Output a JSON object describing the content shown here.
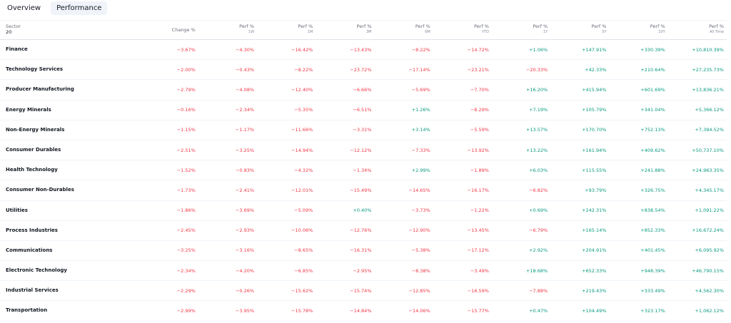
{
  "tabs": [
    {
      "label": "Overview",
      "active": false
    },
    {
      "label": "Performance",
      "active": true
    }
  ],
  "table": {
    "sector_header": "Sector",
    "sector_count": "20",
    "columns": [
      {
        "label": "Change %",
        "sub": ""
      },
      {
        "label": "Perf %",
        "sub": "1W"
      },
      {
        "label": "Perf %",
        "sub": "1M"
      },
      {
        "label": "Perf %",
        "sub": "3M"
      },
      {
        "label": "Perf %",
        "sub": "6M"
      },
      {
        "label": "Perf %",
        "sub": "YTD"
      },
      {
        "label": "Perf %",
        "sub": "1Y"
      },
      {
        "label": "Perf %",
        "sub": "5Y"
      },
      {
        "label": "Perf %",
        "sub": "10Y"
      },
      {
        "label": "Perf %",
        "sub": "All Time"
      }
    ],
    "rows": [
      {
        "name": "Finance",
        "values": [
          "−3.67%",
          "−4.30%",
          "−16.42%",
          "−13.43%",
          "−8.22%",
          "−14.72%",
          "+1.06%",
          "+147.91%",
          "+330.39%",
          "+10,810.39%"
        ]
      },
      {
        "name": "Technology Services",
        "values": [
          "−2.00%",
          "−0.43%",
          "−8.22%",
          "−23.72%",
          "−17.14%",
          "−23.21%",
          "−20.33%",
          "+42.33%",
          "+210.64%",
          "+27,235.73%"
        ]
      },
      {
        "name": "Producer Manufacturing",
        "values": [
          "−2.79%",
          "−4.08%",
          "−12.40%",
          "−6.66%",
          "−5.69%",
          "−7.70%",
          "+16.20%",
          "+415.94%",
          "+601.69%",
          "+13,836.21%"
        ]
      },
      {
        "name": "Energy Minerals",
        "values": [
          "−0.16%",
          "−2.34%",
          "−5.35%",
          "−6.51%",
          "+1.26%",
          "−8.29%",
          "+7.19%",
          "+105.79%",
          "+341.04%",
          "+5,366.12%"
        ]
      },
      {
        "name": "Non-Energy Minerals",
        "values": [
          "−1.15%",
          "−1.17%",
          "−11.66%",
          "−3.31%",
          "+3.14%",
          "−5.59%",
          "+13.57%",
          "+170.70%",
          "+752.13%",
          "+7,394.52%"
        ]
      },
      {
        "name": "Consumer Durables",
        "values": [
          "−2.51%",
          "−3.25%",
          "−14.94%",
          "−12.12%",
          "−7.33%",
          "−13.92%",
          "+13.22%",
          "+161.94%",
          "+409.62%",
          "+50,737.10%"
        ]
      },
      {
        "name": "Health Technology",
        "values": [
          "−1.52%",
          "−0.83%",
          "−4.32%",
          "−1.34%",
          "+2.99%",
          "−1.89%",
          "+6.03%",
          "+115.55%",
          "+241.88%",
          "+24,963.35%"
        ]
      },
      {
        "name": "Consumer Non-Durables",
        "values": [
          "−1.73%",
          "−2.41%",
          "−12.01%",
          "−15.49%",
          "−14.65%",
          "−16.17%",
          "−6.82%",
          "+93.79%",
          "+326.75%",
          "+4,345.17%"
        ]
      },
      {
        "name": "Utilities",
        "values": [
          "−1.86%",
          "−3.69%",
          "−5.09%",
          "+0.40%",
          "−3.73%",
          "−1.22%",
          "+0.69%",
          "+242.31%",
          "+838.54%",
          "+1,091.22%"
        ]
      },
      {
        "name": "Process Industries",
        "values": [
          "−2.45%",
          "−2.93%",
          "−10.06%",
          "−12.76%",
          "−12.90%",
          "−13.45%",
          "−6.79%",
          "+165.14%",
          "+852.33%",
          "+16,672.24%"
        ]
      },
      {
        "name": "Communications",
        "values": [
          "−3.25%",
          "−3.16%",
          "−8.65%",
          "−16.31%",
          "−5.38%",
          "−17.12%",
          "+2.92%",
          "+204.91%",
          "+401.45%",
          "+6,095.92%"
        ]
      },
      {
        "name": "Electronic Technology",
        "values": [
          "−2.34%",
          "−4.20%",
          "−6.85%",
          "−2.95%",
          "−8.38%",
          "−3.49%",
          "+18.68%",
          "+652.33%",
          "+948.39%",
          "+46,790.15%"
        ]
      },
      {
        "name": "Industrial Services",
        "values": [
          "−2.29%",
          "−0.26%",
          "−15.62%",
          "−15.74%",
          "−12.85%",
          "−16.59%",
          "−7.88%",
          "+219.43%",
          "+333.49%",
          "+4,562.30%"
        ]
      },
      {
        "name": "Transportation",
        "values": [
          "−2.99%",
          "−3.95%",
          "−15.78%",
          "−14.84%",
          "−14.06%",
          "−15.77%",
          "+0.47%",
          "+104.49%",
          "+323.17%",
          "+1,062.12%"
        ]
      }
    ]
  },
  "colors": {
    "negative": "#f23645",
    "positive": "#089981",
    "active_tab_bg": "#f0f3fa"
  }
}
